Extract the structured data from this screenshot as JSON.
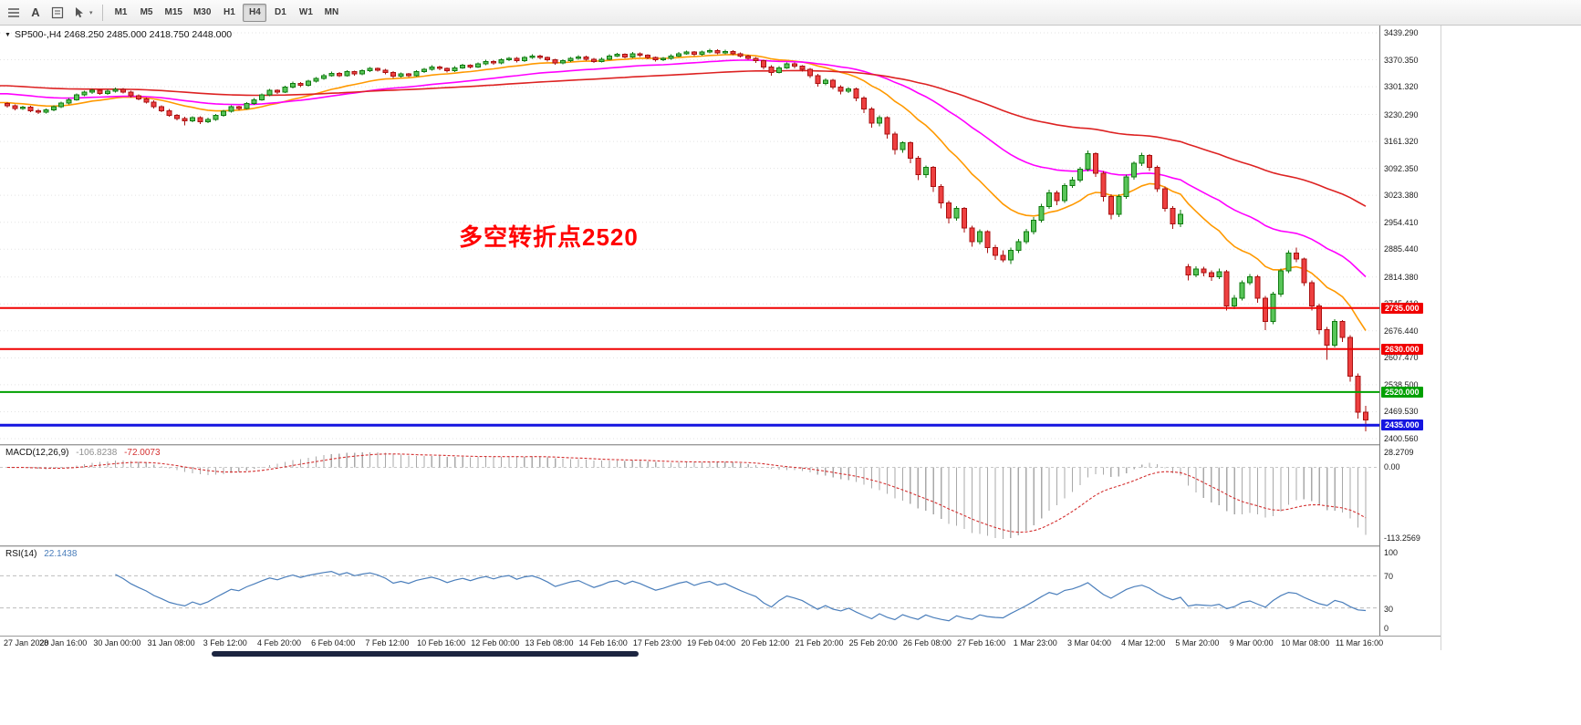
{
  "toolbar": {
    "timeframes": [
      "M1",
      "M5",
      "M15",
      "M30",
      "H1",
      "H4",
      "D1",
      "W1",
      "MN"
    ],
    "active_timeframe": "H4",
    "text_tool_glyph": "A",
    "cursor_caret_glyph": "▾"
  },
  "chart": {
    "header": {
      "collapse_glyph": "▼",
      "title": "SP500-,H4  2468.250 2485.000 2418.750 2448.000"
    },
    "annotation": {
      "text": "多空转折点2520",
      "color": "#ff0000"
    },
    "hlines": [
      {
        "price": 2735.0,
        "label": "2735.000",
        "color": "#f00000",
        "width": 2
      },
      {
        "price": 2630.0,
        "label": "2630.000",
        "color": "#f00000",
        "width": 2
      },
      {
        "price": 2520.0,
        "label": "2520.000",
        "color": "#00a000",
        "width": 2
      },
      {
        "price": 2435.0,
        "label": "2435.000",
        "color": "#1515e0",
        "width": 3
      }
    ],
    "price_axis_range": {
      "top": 3439.29,
      "bottom": 2400.56
    },
    "price_axis_labels": [
      "3439.290",
      "3370.350",
      "3301.320",
      "3230.290",
      "3161.320",
      "3092.350",
      "3023.380",
      "2954.410",
      "2885.440",
      "2814.380",
      "2745.410",
      "2676.440",
      "2607.470",
      "2538.500",
      "2469.530",
      "2400.560"
    ],
    "date_labels": [
      "27 Jan 2020",
      "28 Jan 16:00",
      "30 Jan 00:00",
      "31 Jan 08:00",
      "3 Feb 12:00",
      "4 Feb 20:00",
      "6 Feb 04:00",
      "7 Feb 12:00",
      "10 Feb 16:00",
      "12 Feb 00:00",
      "13 Feb 08:00",
      "14 Feb 16:00",
      "17 Feb 23:00",
      "19 Feb 04:00",
      "20 Feb 12:00",
      "21 Feb 20:00",
      "25 Feb 20:00",
      "26 Feb 08:00",
      "27 Feb 16:00",
      "1 Mar 23:00",
      "3 Mar 04:00",
      "4 Mar 12:00",
      "5 Mar 20:00",
      "9 Mar 00:00",
      "10 Mar 08:00",
      "11 Mar 16:00"
    ]
  },
  "macd_panel": {
    "label": "MACD(12,26,9)",
    "main_value": "-106.8238",
    "signal_value": "-72.0073",
    "axis_labels": [
      "28.2709",
      "0.00",
      "-113.2569"
    ],
    "params": {
      "fast": 12,
      "slow": 26,
      "signal": 9
    },
    "colors": {
      "histogram": "#a9a9a9",
      "signal": "#d43131"
    }
  },
  "rsi_panel": {
    "label": "RSI(14)",
    "value": "22.1438",
    "period": 14,
    "levels": [
      70,
      30
    ],
    "axis_labels": [
      "100",
      "70",
      "30",
      "0"
    ],
    "color": "#4a7ebb"
  },
  "colors": {
    "bull_fill": "#58c558",
    "bull_border": "#0f7a0f",
    "bear_fill": "#ee4040",
    "bear_border": "#a81111",
    "grid": "#e3e3e3"
  },
  "chart_data": {
    "type": "candlestick",
    "symbol": "SP500-",
    "timeframe": "H4",
    "last_quote": {
      "open": 2468.25,
      "high": 2485.0,
      "low": 2418.75,
      "close": 2448.0
    },
    "moving_averages": [
      {
        "name": "fast-ma",
        "period": 16,
        "color": "#ff9900",
        "seed": 3262
      },
      {
        "name": "mid-ma",
        "period": 40,
        "color": "#ff00ff",
        "seed": 3285
      },
      {
        "name": "slow-ma",
        "period": 100,
        "color": "#dd2222",
        "seed": 3305
      }
    ],
    "candles": [
      [
        3258,
        3262,
        3248,
        3252
      ],
      [
        3252,
        3256,
        3241,
        3245
      ],
      [
        3245,
        3253,
        3242,
        3249
      ],
      [
        3249,
        3252,
        3236,
        3240
      ],
      [
        3240,
        3244,
        3231,
        3236
      ],
      [
        3236,
        3246,
        3233,
        3242
      ],
      [
        3242,
        3254,
        3239,
        3250
      ],
      [
        3250,
        3263,
        3247,
        3259
      ],
      [
        3259,
        3272,
        3256,
        3268
      ],
      [
        3268,
        3284,
        3265,
        3280
      ],
      [
        3280,
        3291,
        3277,
        3287
      ],
      [
        3287,
        3296,
        3283,
        3292
      ],
      [
        3292,
        3295,
        3280,
        3284
      ],
      [
        3284,
        3294,
        3281,
        3290
      ],
      [
        3290,
        3299,
        3286,
        3295
      ],
      [
        3295,
        3298,
        3284,
        3288
      ],
      [
        3288,
        3291,
        3274,
        3278
      ],
      [
        3278,
        3282,
        3266,
        3270
      ],
      [
        3270,
        3274,
        3258,
        3262
      ],
      [
        3262,
        3266,
        3246,
        3250
      ],
      [
        3250,
        3254,
        3236,
        3240
      ],
      [
        3240,
        3244,
        3224,
        3228
      ],
      [
        3228,
        3232,
        3215,
        3220
      ],
      [
        3220,
        3224,
        3202,
        3214
      ],
      [
        3214,
        3226,
        3210,
        3222
      ],
      [
        3222,
        3226,
        3206,
        3212
      ],
      [
        3212,
        3222,
        3208,
        3218
      ],
      [
        3218,
        3232,
        3214,
        3228
      ],
      [
        3228,
        3242,
        3224,
        3238
      ],
      [
        3238,
        3254,
        3235,
        3250
      ],
      [
        3250,
        3253,
        3241,
        3246
      ],
      [
        3246,
        3262,
        3243,
        3258
      ],
      [
        3258,
        3272,
        3255,
        3268
      ],
      [
        3268,
        3284,
        3265,
        3280
      ],
      [
        3280,
        3296,
        3277,
        3292
      ],
      [
        3292,
        3295,
        3283,
        3288
      ],
      [
        3288,
        3304,
        3285,
        3300
      ],
      [
        3300,
        3314,
        3297,
        3310
      ],
      [
        3310,
        3313,
        3300,
        3305
      ],
      [
        3305,
        3319,
        3302,
        3315
      ],
      [
        3315,
        3326,
        3312,
        3322
      ],
      [
        3322,
        3334,
        3319,
        3330
      ],
      [
        3330,
        3340,
        3327,
        3336
      ],
      [
        3336,
        3339,
        3326,
        3330
      ],
      [
        3330,
        3344,
        3327,
        3340
      ],
      [
        3340,
        3343,
        3329,
        3334
      ],
      [
        3334,
        3346,
        3331,
        3342
      ],
      [
        3342,
        3352,
        3339,
        3348
      ],
      [
        3348,
        3351,
        3340,
        3344
      ],
      [
        3344,
        3347,
        3333,
        3338
      ],
      [
        3338,
        3341,
        3323,
        3328
      ],
      [
        3328,
        3338,
        3325,
        3334
      ],
      [
        3334,
        3337,
        3326,
        3330
      ],
      [
        3330,
        3344,
        3327,
        3340
      ],
      [
        3340,
        3350,
        3337,
        3346
      ],
      [
        3346,
        3356,
        3343,
        3352
      ],
      [
        3352,
        3355,
        3344,
        3348
      ],
      [
        3348,
        3351,
        3338,
        3342
      ],
      [
        3342,
        3354,
        3339,
        3350
      ],
      [
        3350,
        3360,
        3347,
        3356
      ],
      [
        3356,
        3359,
        3348,
        3352
      ],
      [
        3352,
        3364,
        3349,
        3360
      ],
      [
        3360,
        3370,
        3357,
        3366
      ],
      [
        3366,
        3369,
        3358,
        3362
      ],
      [
        3362,
        3374,
        3359,
        3370
      ],
      [
        3370,
        3378,
        3367,
        3374
      ],
      [
        3374,
        3377,
        3364,
        3368
      ],
      [
        3368,
        3380,
        3365,
        3376
      ],
      [
        3376,
        3384,
        3373,
        3380
      ],
      [
        3380,
        3383,
        3372,
        3376
      ],
      [
        3376,
        3379,
        3366,
        3370
      ],
      [
        3370,
        3373,
        3358,
        3362
      ],
      [
        3362,
        3372,
        3359,
        3368
      ],
      [
        3368,
        3378,
        3365,
        3374
      ],
      [
        3374,
        3382,
        3371,
        3378
      ],
      [
        3378,
        3381,
        3368,
        3372
      ],
      [
        3372,
        3375,
        3362,
        3366
      ],
      [
        3366,
        3376,
        3363,
        3372
      ],
      [
        3372,
        3384,
        3369,
        3380
      ],
      [
        3380,
        3388,
        3377,
        3384
      ],
      [
        3384,
        3387,
        3374,
        3378
      ],
      [
        3378,
        3390,
        3375,
        3386
      ],
      [
        3386,
        3389,
        3378,
        3382
      ],
      [
        3382,
        3385,
        3372,
        3376
      ],
      [
        3376,
        3379,
        3366,
        3370
      ],
      [
        3370,
        3378,
        3367,
        3374
      ],
      [
        3374,
        3384,
        3371,
        3380
      ],
      [
        3380,
        3390,
        3377,
        3386
      ],
      [
        3386,
        3394,
        3383,
        3390
      ],
      [
        3390,
        3393,
        3380,
        3384
      ],
      [
        3384,
        3394,
        3381,
        3390
      ],
      [
        3390,
        3398,
        3387,
        3394
      ],
      [
        3394,
        3397,
        3384,
        3388
      ],
      [
        3388,
        3396,
        3385,
        3392
      ],
      [
        3392,
        3395,
        3382,
        3386
      ],
      [
        3386,
        3389,
        3376,
        3380
      ],
      [
        3380,
        3383,
        3370,
        3374
      ],
      [
        3374,
        3377,
        3362,
        3368
      ],
      [
        3368,
        3371,
        3346,
        3352
      ],
      [
        3352,
        3356,
        3330,
        3338
      ],
      [
        3338,
        3354,
        3335,
        3350
      ],
      [
        3350,
        3364,
        3347,
        3360
      ],
      [
        3360,
        3363,
        3348,
        3354
      ],
      [
        3354,
        3357,
        3340,
        3346
      ],
      [
        3346,
        3349,
        3324,
        3330
      ],
      [
        3330,
        3334,
        3302,
        3310
      ],
      [
        3310,
        3322,
        3305,
        3318
      ],
      [
        3318,
        3321,
        3294,
        3300
      ],
      [
        3300,
        3305,
        3282,
        3290
      ],
      [
        3290,
        3300,
        3285,
        3296
      ],
      [
        3296,
        3299,
        3264,
        3272
      ],
      [
        3272,
        3277,
        3234,
        3244
      ],
      [
        3244,
        3249,
        3196,
        3208
      ],
      [
        3208,
        3228,
        3200,
        3222
      ],
      [
        3222,
        3226,
        3168,
        3180
      ],
      [
        3180,
        3186,
        3128,
        3140
      ],
      [
        3140,
        3162,
        3132,
        3158
      ],
      [
        3158,
        3161,
        3106,
        3118
      ],
      [
        3118,
        3124,
        3062,
        3076
      ],
      [
        3076,
        3100,
        3068,
        3095
      ],
      [
        3095,
        3099,
        3032,
        3046
      ],
      [
        3046,
        3052,
        2990,
        3004
      ],
      [
        3004,
        3010,
        2952,
        2965
      ],
      [
        2965,
        2996,
        2958,
        2990
      ],
      [
        2990,
        2994,
        2928,
        2940
      ],
      [
        2940,
        2946,
        2892,
        2905
      ],
      [
        2905,
        2936,
        2898,
        2930
      ],
      [
        2930,
        2934,
        2876,
        2890
      ],
      [
        2890,
        2896,
        2858,
        2870
      ],
      [
        2870,
        2882,
        2852,
        2858
      ],
      [
        2858,
        2890,
        2848,
        2882
      ],
      [
        2882,
        2912,
        2876,
        2905
      ],
      [
        2905,
        2938,
        2899,
        2930
      ],
      [
        2930,
        2968,
        2924,
        2960
      ],
      [
        2960,
        3002,
        2954,
        2995
      ],
      [
        2995,
        3038,
        2989,
        3030
      ],
      [
        3030,
        3035,
        2998,
        3010
      ],
      [
        3010,
        3054,
        3004,
        3048
      ],
      [
        3048,
        3070,
        3042,
        3062
      ],
      [
        3062,
        3096,
        3056,
        3090
      ],
      [
        3090,
        3138,
        3084,
        3130
      ],
      [
        3130,
        3134,
        3070,
        3080
      ],
      [
        3080,
        3086,
        3008,
        3020
      ],
      [
        3020,
        3026,
        2962,
        2975
      ],
      [
        2975,
        3026,
        2968,
        3020
      ],
      [
        3020,
        3076,
        3014,
        3070
      ],
      [
        3070,
        3110,
        3064,
        3105
      ],
      [
        3105,
        3132,
        3099,
        3125
      ],
      [
        3125,
        3129,
        3086,
        3095
      ],
      [
        3095,
        3100,
        3032,
        3040
      ],
      [
        3040,
        3046,
        2982,
        2990
      ],
      [
        2990,
        2996,
        2938,
        2950
      ],
      [
        2950,
        2986,
        2942,
        2975
      ],
      [
        2840,
        2848,
        2806,
        2820
      ],
      [
        2820,
        2842,
        2814,
        2835
      ],
      [
        2835,
        2840,
        2816,
        2825
      ],
      [
        2825,
        2831,
        2804,
        2815
      ],
      [
        2815,
        2836,
        2809,
        2828
      ],
      [
        2828,
        2832,
        2728,
        2740
      ],
      [
        2740,
        2768,
        2732,
        2760
      ],
      [
        2760,
        2806,
        2754,
        2800
      ],
      [
        2800,
        2822,
        2794,
        2815
      ],
      [
        2815,
        2819,
        2748,
        2760
      ],
      [
        2760,
        2766,
        2678,
        2700
      ],
      [
        2700,
        2776,
        2694,
        2770
      ],
      [
        2770,
        2836,
        2764,
        2830
      ],
      [
        2830,
        2882,
        2824,
        2875
      ],
      [
        2875,
        2890,
        2852,
        2860
      ],
      [
        2860,
        2864,
        2792,
        2800
      ],
      [
        2800,
        2806,
        2728,
        2740
      ],
      [
        2740,
        2746,
        2668,
        2680
      ],
      [
        2680,
        2686,
        2602,
        2640
      ],
      [
        2640,
        2706,
        2634,
        2700
      ],
      [
        2700,
        2704,
        2648,
        2660
      ],
      [
        2660,
        2666,
        2546,
        2560
      ],
      [
        2560,
        2568,
        2452,
        2468
      ],
      [
        2468.25,
        2485,
        2418.75,
        2448
      ]
    ]
  }
}
